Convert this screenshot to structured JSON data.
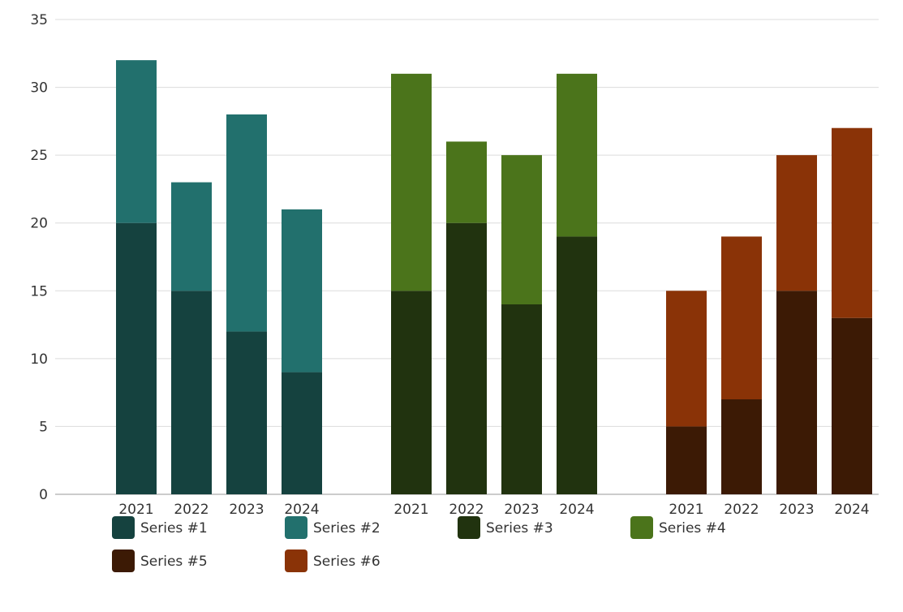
{
  "chart_data": {
    "type": "bar",
    "stacked": true,
    "title": "",
    "xlabel": "",
    "ylabel": "",
    "ylim": [
      0,
      35
    ],
    "y_ticks": [
      0,
      5,
      10,
      15,
      20,
      25,
      30,
      35
    ],
    "grid": true,
    "legend_position": "bottom",
    "groups": [
      {
        "categories": [
          "2021",
          "2022",
          "2023",
          "2024"
        ],
        "stack": [
          {
            "series": "Series #1",
            "values": [
              20,
              15,
              12,
              9
            ]
          },
          {
            "series": "Series #2",
            "values": [
              12,
              8,
              16,
              12
            ]
          }
        ]
      },
      {
        "categories": [
          "2021",
          "2022",
          "2023",
          "2024"
        ],
        "stack": [
          {
            "series": "Series #3",
            "values": [
              15,
              20,
              14,
              19
            ]
          },
          {
            "series": "Series #4",
            "values": [
              16,
              6,
              11,
              12
            ]
          }
        ]
      },
      {
        "categories": [
          "2021",
          "2022",
          "2023",
          "2024"
        ],
        "stack": [
          {
            "series": "Series #5",
            "values": [
              5,
              7,
              15,
              13
            ]
          },
          {
            "series": "Series #6",
            "values": [
              10,
              12,
              10,
              14
            ]
          }
        ]
      }
    ],
    "series": [
      {
        "name": "Series #1",
        "color": "#15423f"
      },
      {
        "name": "Series #2",
        "color": "#22706d"
      },
      {
        "name": "Series #3",
        "color": "#21330f"
      },
      {
        "name": "Series #4",
        "color": "#4b741b"
      },
      {
        "name": "Series #5",
        "color": "#3c1a05"
      },
      {
        "name": "Series #6",
        "color": "#8a3307"
      }
    ]
  }
}
